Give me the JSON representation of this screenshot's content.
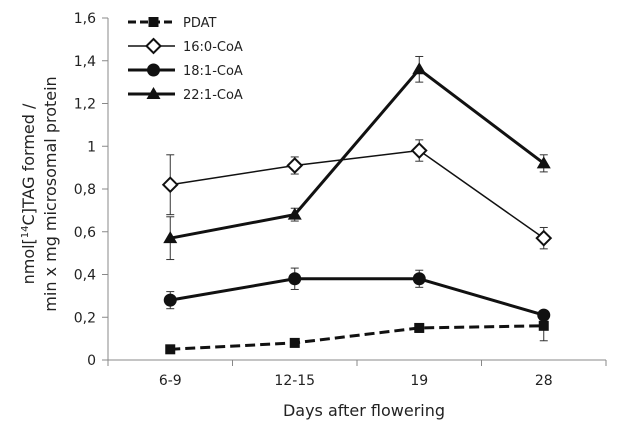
{
  "chart_data": {
    "type": "line",
    "categories": [
      "6-9",
      "12-15",
      "19",
      "28"
    ],
    "xlabel": "Days after flowering",
    "ylabel_line1": "nmol[14C]TAG formed /",
    "ylabel_line2": "min x mg microsomal protein",
    "ylim": [
      0,
      1.6
    ],
    "yticks": [
      "0",
      "0,2",
      "0,4",
      "0,6",
      "0,8",
      "1",
      "1,2",
      "1,4",
      "1,6"
    ],
    "grid": false,
    "legend_position": "top-left",
    "series": [
      {
        "name": "PDAT",
        "marker": "square",
        "dashed": true,
        "width": 3,
        "values": [
          0.05,
          0.08,
          0.15,
          0.16
        ],
        "errors": [
          0.01,
          0.01,
          0.02,
          0.07
        ]
      },
      {
        "name": "16:0-CoA",
        "marker": "diamond",
        "dashed": false,
        "width": 1.5,
        "values": [
          0.82,
          0.91,
          0.98,
          0.57
        ],
        "errors": [
          0.14,
          0.04,
          0.05,
          0.05
        ]
      },
      {
        "name": "18:1-CoA",
        "marker": "circle",
        "dashed": false,
        "width": 3,
        "values": [
          0.28,
          0.38,
          0.38,
          0.21
        ],
        "errors": [
          0.04,
          0.05,
          0.04,
          0.02
        ]
      },
      {
        "name": "22:1-CoA",
        "marker": "triangle",
        "dashed": false,
        "width": 3,
        "values": [
          0.57,
          0.68,
          1.36,
          0.92
        ],
        "errors": [
          0.1,
          0.03,
          0.06,
          0.04
        ]
      }
    ]
  }
}
